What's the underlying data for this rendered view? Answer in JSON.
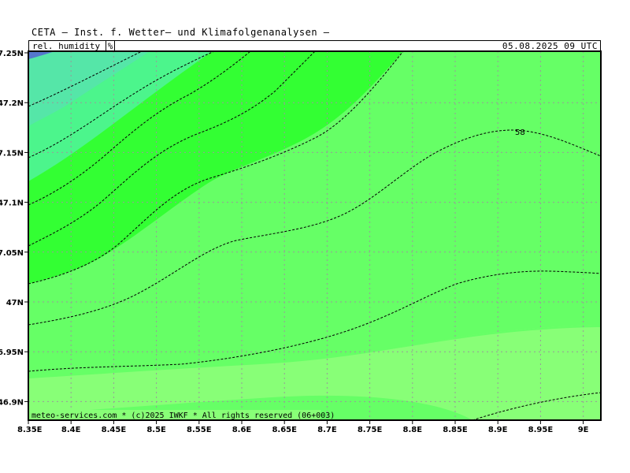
{
  "header": {
    "title": "CETA — Inst. f. Wetter— und Klimafolgenanalysen —",
    "parameter": "rel. humidity",
    "unit": "%",
    "datetime": "05.08.2025 09 UTC"
  },
  "map": {
    "lat_labels": [
      "7.25N",
      "47.2N",
      "7.15N",
      "47.1N",
      "7.05N",
      "47N",
      "6.95N",
      "46.9N"
    ],
    "lon_labels": [
      "8.35E",
      "8.4E",
      "8.45E",
      "8.5E",
      "8.55E",
      "8.6E",
      "8.65E",
      "8.7E",
      "8.75E",
      "8.8E",
      "8.85E",
      "8.9E",
      "8.95E",
      "9E"
    ],
    "contour_label": "58",
    "copyright": "meteo-services.com * (c)2025 IWKF * All rights reserved (06+003)",
    "colors": {
      "band_lightest": "#88ff77",
      "band_light": "#66ff66",
      "band_mid": "#5ef05e",
      "band_bright": "#33ff33",
      "band_teal": "#4cf58c",
      "band_cyan": "#55e6a8",
      "band_blue": "#5577cc",
      "grid": "#999999",
      "contour": "#000000"
    }
  }
}
